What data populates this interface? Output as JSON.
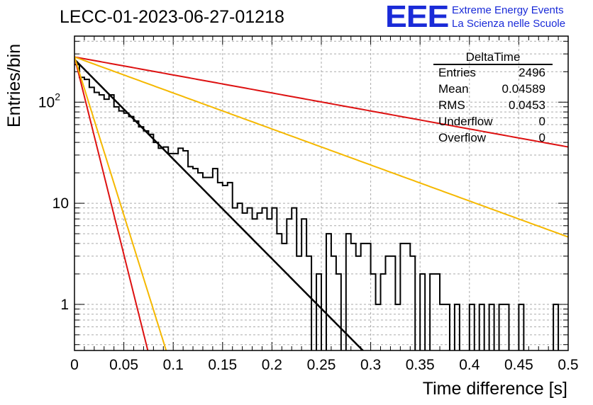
{
  "header": {
    "title": "LECC-01-2023-06-27-01218"
  },
  "logo": {
    "mark": "EEE",
    "line1": "Extreme Energy Events",
    "line2": "La Scienza nelle Scuole"
  },
  "stats": {
    "name": "DeltaTime",
    "rows": [
      {
        "key": "Entries",
        "value": "2496"
      },
      {
        "key": "Mean",
        "value": "0.04589"
      },
      {
        "key": "RMS",
        "value": "0.0453"
      },
      {
        "key": "Underflow",
        "value": "0"
      },
      {
        "key": "Overflow",
        "value": "0"
      }
    ]
  },
  "colors": {
    "histogram": "#000000",
    "fit": "#000000",
    "reference_red": "#dd1111",
    "reference_orange": "#f5b800",
    "grid": "#aaaaaa",
    "logo": "#1a2bd8"
  },
  "chart_data": {
    "type": "histogram",
    "title": "LECC-01-2023-06-27-01218",
    "xlabel": "Time difference [s]",
    "ylabel": "Entries/bin",
    "xlim": [
      0,
      0.5
    ],
    "ylim": [
      0.35,
      450
    ],
    "yscale": "log",
    "grid": true,
    "bin_width": 0.005,
    "x_ticks": [
      "0",
      "0.05",
      "0.1",
      "0.15",
      "0.2",
      "0.25",
      "0.3",
      "0.35",
      "0.4",
      "0.45",
      "0.5"
    ],
    "y_ticks": [
      "1",
      "10",
      "10^2"
    ],
    "histogram": [
      235,
      176,
      168,
      140,
      125,
      118,
      107,
      118,
      90,
      82,
      78,
      72,
      65,
      57,
      52,
      48,
      40,
      35,
      36,
      31,
      31,
      35,
      33,
      23,
      22,
      20,
      18,
      18,
      22,
      16,
      15,
      16,
      9,
      10,
      8,
      9,
      7,
      8,
      9,
      7,
      9,
      5,
      4,
      7,
      9,
      3,
      7,
      3,
      0,
      2,
      0,
      5,
      3,
      2,
      0,
      5,
      4,
      3,
      4,
      4,
      2,
      1,
      2,
      3,
      3,
      1,
      4,
      4,
      3,
      0,
      2,
      0,
      2,
      2,
      1,
      1,
      0,
      1,
      0,
      0,
      1,
      0,
      1,
      0,
      1,
      0,
      1,
      1,
      0,
      0,
      1,
      0,
      0,
      0,
      0,
      0,
      0,
      1,
      0,
      0,
      0,
      0,
      0,
      0,
      0,
      0,
      0,
      0,
      0,
      0
    ],
    "series": [
      {
        "name": "",
        "kind": "exponential",
        "color": "#000000",
        "amplitude": 265,
        "slope": -22.7
      },
      {
        "name": "",
        "kind": "exponential",
        "color": "#dd1111",
        "amplitude": 280,
        "slope": -4.1
      },
      {
        "name": "",
        "kind": "exponential",
        "color": "#f5b800",
        "amplitude": 280,
        "slope": -8.2
      },
      {
        "name": "",
        "kind": "exponential",
        "color": "#dd1111",
        "amplitude": 280,
        "slope": -90
      },
      {
        "name": "",
        "kind": "exponential",
        "color": "#f5b800",
        "amplitude": 280,
        "slope": -72
      }
    ]
  }
}
